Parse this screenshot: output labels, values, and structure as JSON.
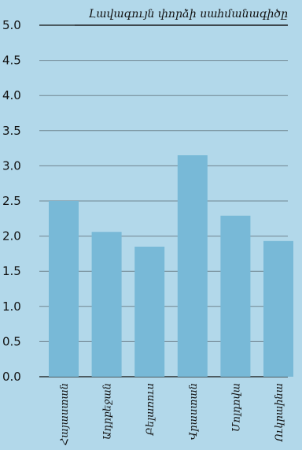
{
  "chart_data": {
    "type": "bar",
    "title": "Լավագույն փորձի սահմանագիծը",
    "categories": [
      "Հայաստան",
      "Ադրբեջան",
      "Բելառուս",
      "Վրաստան",
      "Մոլդովա",
      "Ուկրաինա"
    ],
    "values": [
      2.5,
      2.06,
      1.85,
      3.15,
      2.29,
      1.93
    ],
    "ylim": [
      0,
      5
    ],
    "yticks": [
      "0.0",
      "0.5",
      "1.0",
      "1.5",
      "2.0",
      "2.5",
      "3.0",
      "3.5",
      "4.0",
      "4.5",
      "5.0"
    ],
    "grid": true,
    "colors": {
      "background": "#b2d8ea",
      "bar": "#78b9d7",
      "grid": "#6f8590",
      "axis": "#111111"
    }
  }
}
